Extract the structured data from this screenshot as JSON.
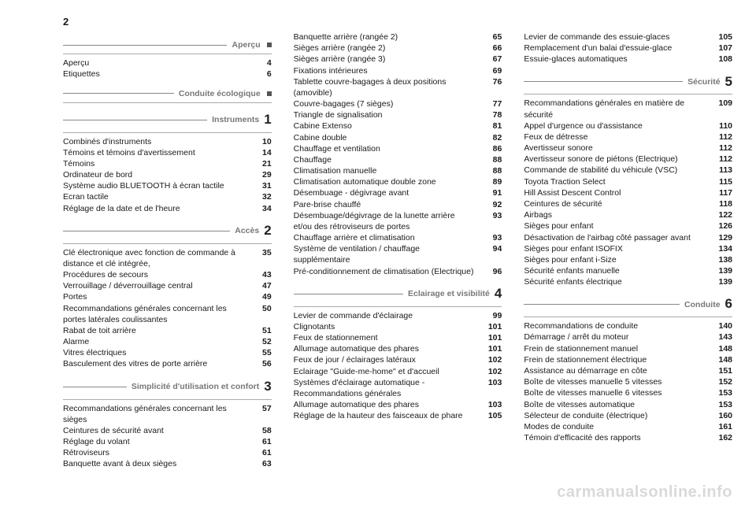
{
  "page_number": "2",
  "watermark": "carmanualsonline.info",
  "columns": [
    {
      "sections": [
        {
          "title": "Aperçu",
          "num": "",
          "square": true,
          "items": [
            {
              "label": "Aperçu",
              "pg": "4"
            },
            {
              "label": "Etiquettes",
              "pg": "6"
            }
          ]
        },
        {
          "title": "Conduite écologique",
          "num": "",
          "square": true,
          "items": []
        },
        {
          "title": "Instruments",
          "num": "1",
          "square": false,
          "items": [
            {
              "label": "Combinés d'instruments",
              "pg": "10"
            },
            {
              "label": "Témoins et témoins d'avertissement",
              "pg": "14"
            },
            {
              "label": "Témoins",
              "pg": "21"
            },
            {
              "label": "Ordinateur de bord",
              "pg": "29"
            },
            {
              "label": "Système audio BLUETOOTH à écran tactile",
              "pg": "31"
            },
            {
              "label": "Ecran tactile",
              "pg": "32"
            },
            {
              "label": "Réglage de la date et de l'heure",
              "pg": "34"
            }
          ]
        },
        {
          "title": "Accès",
          "num": "2",
          "square": false,
          "items": [
            {
              "label": "Clé électronique avec fonction de commande à distance et clé intégrée,",
              "pg": "35"
            },
            {
              "label": "Procédures de secours",
              "pg": "43"
            },
            {
              "label": "Verrouillage / déverrouillage central",
              "pg": "47"
            },
            {
              "label": "Portes",
              "pg": "49"
            },
            {
              "label": "Recommandations générales concernant les portes latérales coulissantes",
              "pg": "50"
            },
            {
              "label": "Rabat de toit arrière",
              "pg": "51"
            },
            {
              "label": "Alarme",
              "pg": "52"
            },
            {
              "label": "Vitres électriques",
              "pg": "55"
            },
            {
              "label": "Basculement des vitres de porte arrière",
              "pg": "56"
            }
          ]
        },
        {
          "title": "Simplicité d'utilisation et confort",
          "num": "3",
          "square": false,
          "items": [
            {
              "label": "Recommandations générales concernant les sièges",
              "pg": "57"
            },
            {
              "label": "Ceintures de sécurité avant",
              "pg": "58"
            },
            {
              "label": "Réglage du volant",
              "pg": "61"
            },
            {
              "label": "Rétroviseurs",
              "pg": "61"
            },
            {
              "label": "Banquette avant à deux sièges",
              "pg": "63"
            }
          ]
        }
      ]
    },
    {
      "sections": [
        {
          "title": "",
          "num": "",
          "square": false,
          "items": [
            {
              "label": "Banquette arrière (rangée 2)",
              "pg": "65"
            },
            {
              "label": "Sièges arrière (rangée 2)",
              "pg": "66"
            },
            {
              "label": "Sièges arrière (rangée 3)",
              "pg": "67"
            },
            {
              "label": "Fixations intérieures",
              "pg": "69"
            },
            {
              "label": "Tablette couvre-bagages à deux positions (amovible)",
              "pg": "76"
            },
            {
              "label": "",
              "pg": "76",
              "inline_only": true
            },
            {
              "label": "Couvre-bagages (7 sièges)",
              "pg": "77"
            },
            {
              "label": "Triangle de signalisation",
              "pg": "78"
            },
            {
              "label": "Cabine Extenso",
              "pg": "81"
            },
            {
              "label": "Cabine double",
              "pg": "82"
            },
            {
              "label": "Chauffage et ventilation",
              "pg": "86"
            },
            {
              "label": "Chauffage",
              "pg": "88"
            },
            {
              "label": "Climatisation manuelle",
              "pg": "88"
            },
            {
              "label": "Climatisation automatique double zone",
              "pg": "89"
            },
            {
              "label": "Désembuage - dégivrage avant",
              "pg": "91"
            },
            {
              "label": "Pare-brise chauffé",
              "pg": "92"
            },
            {
              "label": "Désembuage/dégivrage de la lunette arrière et/ou des rétroviseurs de portes",
              "pg": "93"
            },
            {
              "label": "Chauffage arrière et climatisation",
              "pg": "93"
            },
            {
              "label": "Système de ventilation / chauffage supplémentaire",
              "pg": "94"
            },
            {
              "label": "Pré-conditionnement de climatisation (Electrique)",
              "pg": "96"
            }
          ]
        },
        {
          "title": "Eclairage et visibilité",
          "num": "4",
          "square": false,
          "items": [
            {
              "label": "Levier de commande d'éclairage",
              "pg": "99"
            },
            {
              "label": "Clignotants",
              "pg": "101"
            },
            {
              "label": "Feux de stationnement",
              "pg": "101"
            },
            {
              "label": "Allumage automatique des phares",
              "pg": "101"
            },
            {
              "label": "Feux de jour / éclairages latéraux",
              "pg": "102"
            },
            {
              "label": "Eclairage \"Guide-me-home\" et d'accueil",
              "pg": "102"
            },
            {
              "label": "Systèmes d'éclairage automatique - Recommandations générales",
              "pg": "103"
            },
            {
              "label": "Allumage automatique des phares",
              "pg": "103"
            },
            {
              "label": "Réglage de la hauteur des faisceaux de phare",
              "pg": "105"
            }
          ]
        }
      ]
    },
    {
      "sections": [
        {
          "title": "",
          "num": "",
          "square": false,
          "items": [
            {
              "label": "Levier de commande des essuie-glaces",
              "pg": "105"
            },
            {
              "label": "Remplacement d'un balai d'essuie-glace",
              "pg": "107"
            },
            {
              "label": "Essuie-glaces automatiques",
              "pg": "108"
            }
          ]
        },
        {
          "title": "Sécurité",
          "num": "5",
          "square": false,
          "items": [
            {
              "label": "Recommandations générales en matière de sécurité",
              "pg": "109"
            },
            {
              "label": "Appel d'urgence ou d'assistance",
              "pg": "110"
            },
            {
              "label": "Feux de détresse",
              "pg": "112"
            },
            {
              "label": "Avertisseur sonore",
              "pg": "112"
            },
            {
              "label": "Avertisseur sonore de piétons (Electrique)",
              "pg": "112"
            },
            {
              "label": "Commande de stabilité du véhicule (VSC)",
              "pg": "113"
            },
            {
              "label": "Toyota Traction Select",
              "pg": "115"
            },
            {
              "label": "Hill Assist Descent Control",
              "pg": "117"
            },
            {
              "label": "Ceintures de sécurité",
              "pg": "118"
            },
            {
              "label": "Airbags",
              "pg": "122"
            },
            {
              "label": "Sièges pour enfant",
              "pg": "126"
            },
            {
              "label": "Désactivation de l'airbag côté passager avant",
              "pg": "129"
            },
            {
              "label": "Sièges pour enfant ISOFIX",
              "pg": "134"
            },
            {
              "label": "Sièges pour enfant i-Size",
              "pg": "138"
            },
            {
              "label": "Sécurité enfants manuelle",
              "pg": "139"
            },
            {
              "label": "Sécurité enfants électrique",
              "pg": "139"
            }
          ]
        },
        {
          "title": "Conduite",
          "num": "6",
          "square": false,
          "items": [
            {
              "label": "Recommandations de conduite",
              "pg": "140"
            },
            {
              "label": "Démarrage / arrêt du moteur",
              "pg": "143"
            },
            {
              "label": "Frein de stationnement manuel",
              "pg": "148"
            },
            {
              "label": "Frein de stationnement électrique",
              "pg": "148"
            },
            {
              "label": "Assistance au démarrage en côte",
              "pg": "151"
            },
            {
              "label": "Boîte de vitesses manuelle 5 vitesses",
              "pg": "152"
            },
            {
              "label": "Boîte de vitesses manuelle 6 vitesses",
              "pg": "153"
            },
            {
              "label": "Boîte de vitesses automatique",
              "pg": "153"
            },
            {
              "label": "Sélecteur de conduite (électrique)",
              "pg": "160"
            },
            {
              "label": "Modes de conduite",
              "pg": "161"
            },
            {
              "label": "Témoin d'efficacité des rapports",
              "pg": "162"
            }
          ]
        }
      ]
    }
  ]
}
